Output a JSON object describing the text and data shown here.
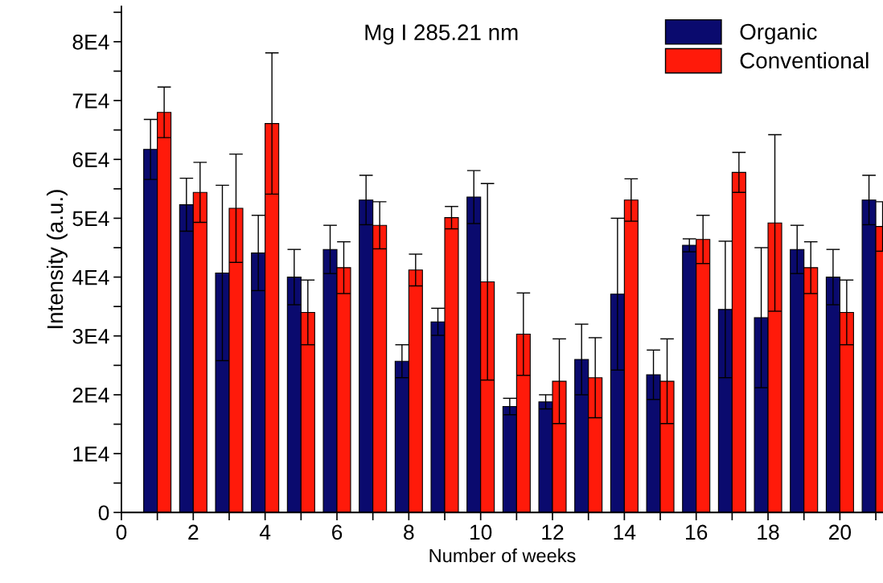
{
  "chart_data": {
    "type": "bar",
    "title": "Mg I 285.21 nm",
    "xlabel": "Number of weeks",
    "ylabel": "Intensity (a.u.)",
    "x": [
      1,
      2,
      3,
      4,
      5,
      6,
      7,
      8,
      9,
      10,
      11,
      12,
      13,
      14,
      15,
      16,
      17,
      18,
      19,
      20,
      21
    ],
    "series": [
      {
        "name": "Organic",
        "color": "#0a0a6e",
        "values": [
          61700,
          52300,
          40700,
          44100,
          40000,
          44700,
          53100,
          25700,
          32400,
          53600,
          18000,
          18800,
          26000,
          37100,
          23400,
          45400,
          34500,
          33100,
          44700,
          40000,
          53100
        ],
        "errors": [
          5100,
          4500,
          14900,
          6400,
          4700,
          4100,
          4200,
          2800,
          2300,
          4500,
          1400,
          1200,
          6000,
          12900,
          4200,
          1100,
          11600,
          11900,
          4100,
          4700,
          4200
        ]
      },
      {
        "name": "Conventional",
        "color": "#ff1a0a",
        "values": [
          68000,
          54400,
          51700,
          66100,
          34000,
          41600,
          48800,
          41200,
          50100,
          39200,
          30300,
          22300,
          22900,
          53100,
          22300,
          46400,
          57800,
          49200,
          41600,
          34000,
          48600
        ],
        "errors": [
          4300,
          5100,
          9200,
          12000,
          5500,
          4400,
          4000,
          2700,
          1900,
          16700,
          7000,
          7200,
          6800,
          3600,
          7200,
          4100,
          3400,
          15000,
          4400,
          5500,
          4200
        ]
      }
    ],
    "xlim": [
      0,
      21.2
    ],
    "xticks": [
      0,
      {
        "value": 1,
        "label": null
      },
      2,
      {
        "value": 3,
        "label": null
      },
      4,
      {
        "value": 5,
        "label": null
      },
      6,
      {
        "value": 7,
        "label": null
      },
      8,
      {
        "value": 9,
        "label": null
      },
      10,
      {
        "value": 11,
        "label": null
      },
      12,
      {
        "value": 13,
        "label": null
      },
      14,
      {
        "value": 15,
        "label": null
      },
      16,
      {
        "value": 17,
        "label": null
      },
      18,
      {
        "value": 19,
        "label": null
      },
      20,
      {
        "value": 21,
        "label": null
      }
    ],
    "ylim": [
      0,
      86000
    ],
    "yticks": [
      0,
      {
        "value": 5000,
        "label": null
      },
      {
        "value": 10000,
        "label": "1E4"
      },
      {
        "value": 15000,
        "label": null
      },
      {
        "value": 20000,
        "label": "2E4"
      },
      {
        "value": 25000,
        "label": null
      },
      {
        "value": 30000,
        "label": "3E4"
      },
      {
        "value": 35000,
        "label": null
      },
      {
        "value": 40000,
        "label": "4E4"
      },
      {
        "value": 45000,
        "label": null
      },
      {
        "value": 50000,
        "label": "5E4"
      },
      {
        "value": 55000,
        "label": null
      },
      {
        "value": 60000,
        "label": "6E4"
      },
      {
        "value": 65000,
        "label": null
      },
      {
        "value": 70000,
        "label": "7E4"
      },
      {
        "value": 75000,
        "label": null
      },
      {
        "value": 80000,
        "label": "8E4"
      },
      {
        "value": 85000,
        "label": null
      }
    ],
    "legend": "top right",
    "grid": false
  }
}
